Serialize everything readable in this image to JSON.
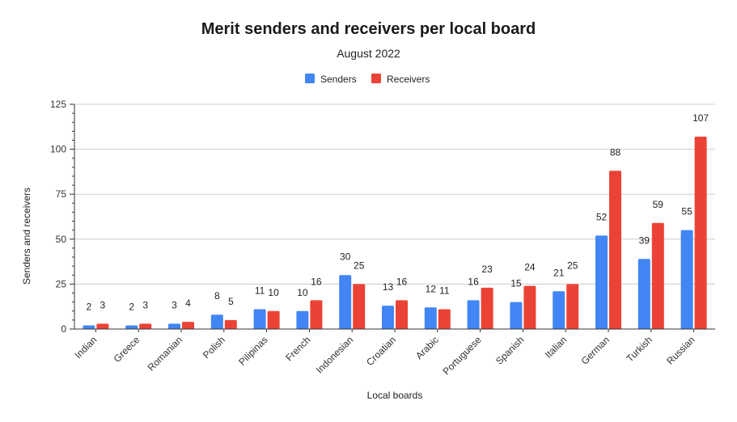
{
  "chart_data": {
    "type": "bar",
    "title": "Merit senders and receivers per local board",
    "subtitle": "August 2022",
    "xlabel": "Local boards",
    "ylabel": "Senders and receivers",
    "ylim": [
      0,
      125
    ],
    "yticks": [
      0,
      25,
      50,
      75,
      100,
      125
    ],
    "grid": true,
    "legend_position": "top",
    "categories": [
      "Indian",
      "Greece",
      "Romanian",
      "Polish",
      "Pilipinas",
      "French",
      "Indonesian",
      "Croatian",
      "Arabic",
      "Portuguese",
      "Spanish",
      "Italian",
      "German",
      "Turkish",
      "Russian"
    ],
    "series": [
      {
        "name": "Senders",
        "color": "#4285f4",
        "values": [
          2,
          2,
          3,
          8,
          11,
          10,
          30,
          13,
          12,
          16,
          15,
          21,
          52,
          39,
          55
        ]
      },
      {
        "name": "Receivers",
        "color": "#ea4335",
        "values": [
          3,
          3,
          4,
          5,
          10,
          16,
          25,
          16,
          11,
          23,
          24,
          25,
          88,
          59,
          107
        ]
      }
    ]
  }
}
